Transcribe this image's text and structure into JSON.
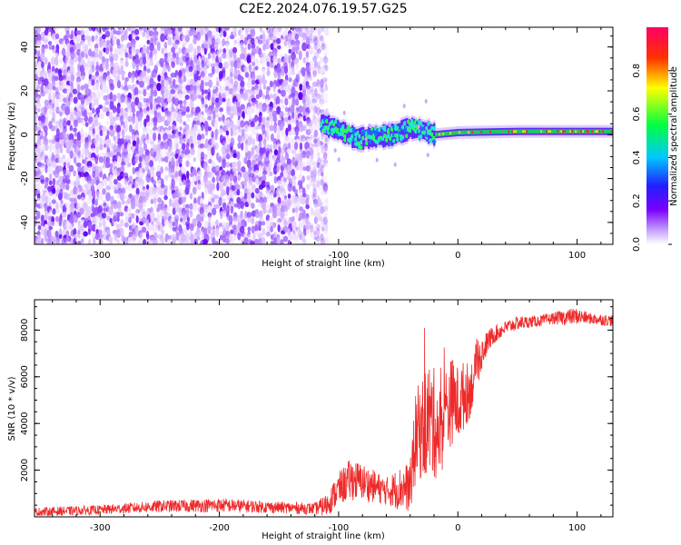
{
  "title": "C2E2.2024.076.19.57.G25",
  "chart_data": [
    {
      "type": "heatmap",
      "xlabel": "Height of straight line (km)",
      "ylabel": "Frequency (Hz)",
      "xlim": [
        -355,
        130
      ],
      "ylim": [
        -50,
        49
      ],
      "xticks": [
        -300,
        -200,
        -100,
        0,
        100
      ],
      "yticks": [
        -40,
        -20,
        0,
        20,
        40
      ],
      "colorbar": {
        "label": "Normalized spectral amplitude",
        "range": [
          0,
          1
        ],
        "ticks": [
          "0.0",
          "0.2",
          "0.4",
          "0.6",
          "0.8"
        ],
        "colors": [
          "#ffffff",
          "#c9a8ff",
          "#7a00ff",
          "#2020ff",
          "#00c8ff",
          "#00ff40",
          "#ffff00",
          "#ff3000",
          "#ff0066"
        ]
      },
      "features": {
        "noise_region_x": [
          -355,
          -110
        ],
        "signal_start_x": -115,
        "signal_center_hz": [
          {
            "x": -115,
            "y": 5
          },
          {
            "x": -100,
            "y": 2
          },
          {
            "x": -85,
            "y": -2
          },
          {
            "x": -70,
            "y": -1
          },
          {
            "x": -55,
            "y": 0
          },
          {
            "x": -40,
            "y": 3
          },
          {
            "x": -30,
            "y": 2
          },
          {
            "x": -20,
            "y": 0
          },
          {
            "x": 0,
            "y": 1
          },
          {
            "x": 50,
            "y": 1.5
          },
          {
            "x": 100,
            "y": 1.5
          },
          {
            "x": 130,
            "y": 1.5
          }
        ]
      }
    },
    {
      "type": "line",
      "xlabel": "Height of straight line (km)",
      "ylabel": "SNR (10 * v/v)",
      "xlim": [
        -355,
        130
      ],
      "ylim": [
        0,
        9300
      ],
      "xticks": [
        -300,
        -200,
        -100,
        0,
        100
      ],
      "yticks": [
        2000,
        4000,
        6000,
        8000
      ],
      "color": "#ee2a2a",
      "series": [
        {
          "x": [
            -355,
            -300,
            -250,
            -200,
            -150,
            -120,
            -110,
            -100,
            -90,
            -80,
            -70,
            -60,
            -50,
            -40,
            -35,
            -30,
            -25,
            -20,
            -15,
            -10,
            -5,
            0,
            5,
            10,
            15,
            20,
            25,
            30,
            40,
            50,
            60,
            70,
            80,
            90,
            100,
            110,
            120,
            130
          ],
          "values": [
            200,
            300,
            450,
            500,
            400,
            350,
            500,
            1200,
            1600,
            1500,
            1300,
            1100,
            1200,
            1300,
            3500,
            3800,
            4200,
            4000,
            3600,
            4500,
            5000,
            4800,
            5200,
            5400,
            6200,
            7000,
            7500,
            7800,
            8100,
            8300,
            8350,
            8400,
            8500,
            8550,
            8600,
            8500,
            8450,
            8400
          ],
          "spread": [
            200,
            200,
            260,
            300,
            250,
            250,
            500,
            700,
            900,
            800,
            700,
            600,
            900,
            1100,
            2000,
            2200,
            2600,
            2400,
            2000,
            2000,
            1900,
            1700,
            1500,
            1200,
            900,
            700,
            500,
            400,
            300,
            300,
            250,
            250,
            250,
            350,
            350,
            250,
            250,
            250
          ]
        }
      ]
    }
  ]
}
